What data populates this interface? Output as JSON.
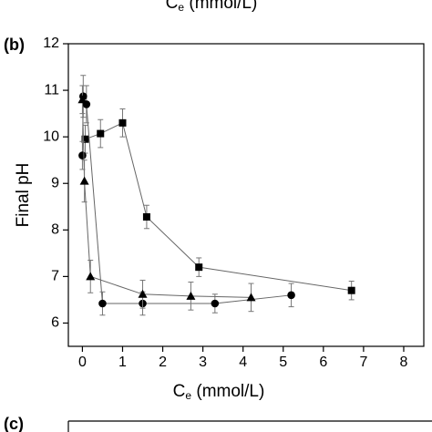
{
  "chart_data": {
    "type": "scatter",
    "top_xlabel": [
      "C",
      "e",
      " (mmol/L)"
    ],
    "panel_label": "(b)",
    "next_panel_label": "(c)",
    "xlabel": [
      "C",
      "e",
      " (mmol/L)"
    ],
    "ylabel": "Final pH",
    "xlim": [
      -0.35,
      8.5
    ],
    "ylim": [
      5.5,
      12
    ],
    "xticks": [
      0,
      1,
      2,
      3,
      4,
      5,
      6,
      7,
      8
    ],
    "yticks": [
      6,
      7,
      8,
      9,
      10,
      11,
      12
    ],
    "series": [
      {
        "marker": "square",
        "color": "#000000",
        "x": [
          0.07,
          0.45,
          1.0,
          1.6,
          2.9,
          6.7
        ],
        "values": [
          9.95,
          10.07,
          10.3,
          8.28,
          7.2,
          6.7
        ],
        "errors": [
          0.3,
          0.3,
          0.3,
          0.25,
          0.2,
          0.2
        ]
      },
      {
        "marker": "circle",
        "color": "#000000",
        "x": [
          0.0,
          0.02,
          0.1,
          0.5,
          1.5,
          3.3,
          5.2
        ],
        "values": [
          9.6,
          10.87,
          10.7,
          6.42,
          6.42,
          6.42,
          6.6
        ],
        "errors": [
          0.3,
          0.45,
          0.4,
          0.25,
          0.25,
          0.2,
          0.25
        ]
      },
      {
        "marker": "triangle",
        "color": "#000000",
        "x": [
          0.0,
          0.05,
          0.2,
          1.5,
          2.7,
          4.2
        ],
        "values": [
          10.8,
          9.05,
          7.0,
          6.62,
          6.58,
          6.55
        ],
        "errors": [
          0.3,
          0.45,
          0.35,
          0.3,
          0.3,
          0.3
        ]
      }
    ]
  }
}
